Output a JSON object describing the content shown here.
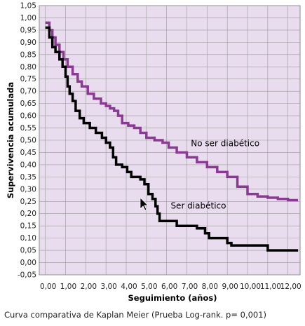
{
  "chart_data": {
    "type": "line",
    "xlabel": "Seguimiento (años)",
    "ylabel": "Supervivencia acumulada",
    "xlim": [
      -0.3,
      12.6
    ],
    "ylim": [
      -0.05,
      1.05
    ],
    "x_ticks": [
      "0,00",
      "1,00",
      "2,00",
      "3,00",
      "4,00",
      "5,00",
      "6,00",
      "7,00",
      "8,00",
      "9,00",
      "10,00",
      "11,00",
      "12,00"
    ],
    "y_ticks": [
      "-0,05",
      "0,00",
      "0,05",
      "0,10",
      "0,15",
      "0,20",
      "0,25",
      "0,30",
      "0,35",
      "0,40",
      "0,45",
      "0,50",
      "0,55",
      "0,60",
      "0,65",
      "0,70",
      "0,75",
      "0,80",
      "0,85",
      "0,90",
      "0,95",
      "1,00",
      "1,05"
    ],
    "grid": true,
    "background_color": "#e8dcee",
    "series": [
      {
        "name": "No ser diabético",
        "color": "#8b3a93",
        "points": [
          [
            0.0,
            0.98
          ],
          [
            0.2,
            0.95
          ],
          [
            0.35,
            0.92
          ],
          [
            0.5,
            0.89
          ],
          [
            0.7,
            0.86
          ],
          [
            0.9,
            0.83
          ],
          [
            1.1,
            0.8
          ],
          [
            1.35,
            0.77
          ],
          [
            1.6,
            0.74
          ],
          [
            1.8,
            0.72
          ],
          [
            2.1,
            0.69
          ],
          [
            2.4,
            0.67
          ],
          [
            2.75,
            0.65
          ],
          [
            3.0,
            0.64
          ],
          [
            3.2,
            0.63
          ],
          [
            3.4,
            0.62
          ],
          [
            3.6,
            0.6
          ],
          [
            3.8,
            0.57
          ],
          [
            4.1,
            0.56
          ],
          [
            4.4,
            0.55
          ],
          [
            4.7,
            0.53
          ],
          [
            5.0,
            0.51
          ],
          [
            5.4,
            0.5
          ],
          [
            5.8,
            0.49
          ],
          [
            6.1,
            0.47
          ],
          [
            6.5,
            0.45
          ],
          [
            7.0,
            0.43
          ],
          [
            7.5,
            0.41
          ],
          [
            8.0,
            0.39
          ],
          [
            8.5,
            0.37
          ],
          [
            9.0,
            0.35
          ],
          [
            9.5,
            0.31
          ],
          [
            10.0,
            0.28
          ],
          [
            10.5,
            0.27
          ],
          [
            11.0,
            0.265
          ],
          [
            11.5,
            0.26
          ],
          [
            12.0,
            0.255
          ],
          [
            12.5,
            0.255
          ]
        ]
      },
      {
        "name": "Ser diabético",
        "color": "#000000",
        "points": [
          [
            0.0,
            0.96
          ],
          [
            0.2,
            0.92
          ],
          [
            0.35,
            0.88
          ],
          [
            0.5,
            0.86
          ],
          [
            0.7,
            0.83
          ],
          [
            0.85,
            0.8
          ],
          [
            1.0,
            0.76
          ],
          [
            1.1,
            0.72
          ],
          [
            1.2,
            0.69
          ],
          [
            1.35,
            0.66
          ],
          [
            1.5,
            0.62
          ],
          [
            1.7,
            0.59
          ],
          [
            1.9,
            0.57
          ],
          [
            2.2,
            0.55
          ],
          [
            2.5,
            0.53
          ],
          [
            2.8,
            0.51
          ],
          [
            3.0,
            0.49
          ],
          [
            3.2,
            0.47
          ],
          [
            3.35,
            0.43
          ],
          [
            3.5,
            0.4
          ],
          [
            3.8,
            0.39
          ],
          [
            4.05,
            0.37
          ],
          [
            4.25,
            0.35
          ],
          [
            4.7,
            0.34
          ],
          [
            4.9,
            0.32
          ],
          [
            5.1,
            0.28
          ],
          [
            5.3,
            0.26
          ],
          [
            5.45,
            0.23
          ],
          [
            5.55,
            0.2
          ],
          [
            5.65,
            0.17
          ],
          [
            6.5,
            0.15
          ],
          [
            7.5,
            0.14
          ],
          [
            7.9,
            0.12
          ],
          [
            8.1,
            0.1
          ],
          [
            8.6,
            0.1
          ],
          [
            9.0,
            0.08
          ],
          [
            9.2,
            0.07
          ],
          [
            10.5,
            0.07
          ],
          [
            11.0,
            0.05
          ],
          [
            12.5,
            0.05
          ]
        ]
      }
    ],
    "annotations": [
      {
        "text": "No ser diabético",
        "x": 7.2,
        "y": 0.475
      },
      {
        "text": "Ser diabético",
        "x": 6.2,
        "y": 0.22
      }
    ]
  },
  "caption": "Curva comparativa de Kaplan Meier (Prueba Log-rank. p= 0,001)"
}
